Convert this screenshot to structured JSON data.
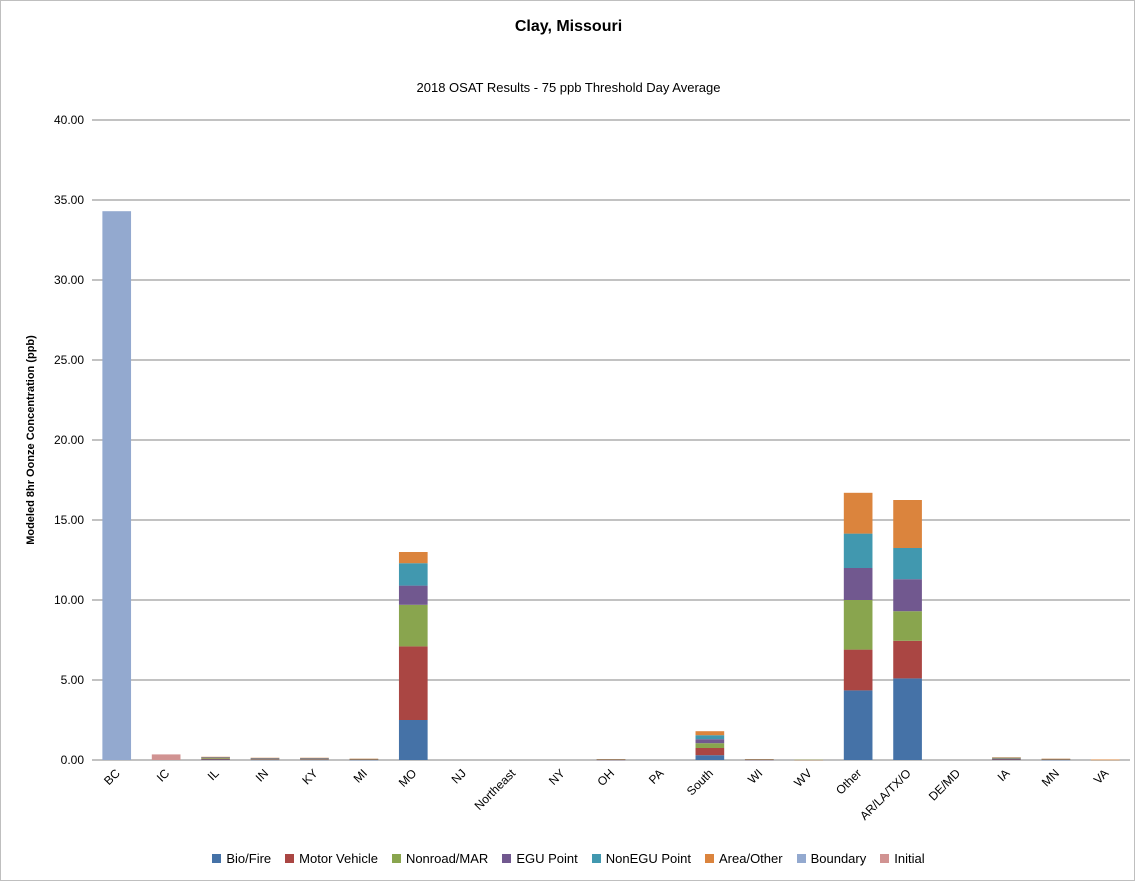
{
  "chart_data": {
    "type": "bar",
    "stacked": true,
    "title": "Clay, Missouri",
    "subtitle": "2018 OSAT Results - 75 ppb Threshold Day Average",
    "xlabel": "",
    "ylabel": "Modeled 8hr Oonze Concentration (ppb)",
    "ylim": [
      0,
      40
    ],
    "yticks": [
      "0.00",
      "5.00",
      "10.00",
      "15.00",
      "20.00",
      "25.00",
      "30.00",
      "35.00",
      "40.00"
    ],
    "ytick_values": [
      0,
      5,
      10,
      15,
      20,
      25,
      30,
      35,
      40
    ],
    "grid": true,
    "legend_position": "bottom",
    "categories": [
      "BC",
      "IC",
      "IL",
      "IN",
      "KY",
      "MI",
      "MO",
      "NJ",
      "Northeast",
      "NY",
      "OH",
      "PA",
      "South",
      "WI",
      "WV",
      "Other",
      "AR/LA/TX/O",
      "DE/MD",
      "IA",
      "MN",
      "VA"
    ],
    "series": [
      {
        "name": "Bio/Fire",
        "color": "#4572a7",
        "values": [
          0,
          0,
          0.03,
          0.02,
          0.02,
          0.01,
          2.5,
          0,
          0,
          0,
          0.01,
          0,
          0.3,
          0.01,
          0,
          4.35,
          5.1,
          0,
          0.03,
          0.01,
          0
        ]
      },
      {
        "name": "Motor Vehicle",
        "color": "#aa4643",
        "values": [
          0,
          0,
          0.05,
          0.03,
          0.03,
          0.02,
          4.6,
          0,
          0,
          0,
          0.01,
          0,
          0.45,
          0.01,
          0.01,
          2.55,
          2.35,
          0,
          0.04,
          0.02,
          0.01
        ]
      },
      {
        "name": "Nonroad/MAR",
        "color": "#89a54e",
        "values": [
          0,
          0,
          0.05,
          0.03,
          0.03,
          0.02,
          2.6,
          0,
          0,
          0,
          0.01,
          0,
          0.3,
          0.01,
          0.01,
          3.1,
          1.85,
          0,
          0.04,
          0.02,
          0.01
        ]
      },
      {
        "name": "EGU Point",
        "color": "#71588f",
        "values": [
          0,
          0,
          0.03,
          0.02,
          0.02,
          0.01,
          1.2,
          0,
          0,
          0,
          0.01,
          0,
          0.25,
          0.01,
          0,
          2.0,
          2.0,
          0,
          0.02,
          0.01,
          0
        ]
      },
      {
        "name": "NonEGU Point",
        "color": "#4198af",
        "values": [
          0,
          0,
          0.02,
          0.02,
          0.02,
          0.01,
          1.4,
          0,
          0,
          0,
          0.01,
          0,
          0.25,
          0.01,
          0,
          2.15,
          1.95,
          0,
          0.02,
          0.01,
          0
        ]
      },
      {
        "name": "Area/Other",
        "color": "#db843d",
        "values": [
          0,
          0,
          0.02,
          0.02,
          0.02,
          0.01,
          0.7,
          0,
          0,
          0,
          0.01,
          0,
          0.25,
          0.01,
          0,
          2.55,
          3.0,
          0,
          0.02,
          0.01,
          0.01
        ]
      },
      {
        "name": "Boundary",
        "color": "#93a9cf",
        "values": [
          34.3,
          0,
          0,
          0,
          0,
          0,
          0,
          0,
          0,
          0,
          0,
          0,
          0,
          0,
          0,
          0,
          0,
          0,
          0,
          0,
          0
        ]
      },
      {
        "name": "Initial",
        "color": "#d19392",
        "values": [
          0,
          0.35,
          0,
          0,
          0,
          0,
          0,
          0,
          0,
          0,
          0,
          0,
          0,
          0,
          0,
          0,
          0,
          0,
          0,
          0,
          0
        ]
      }
    ]
  }
}
